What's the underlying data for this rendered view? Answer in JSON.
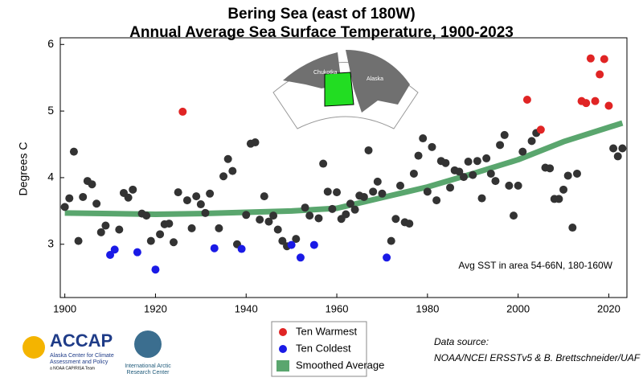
{
  "chart_data": {
    "type": "scatter",
    "title": "Bering Sea (east of 180W)",
    "subtitle": "Annual Average Sea Surface Temperature, 1900-2023",
    "y_label": "Degrees C",
    "annotation": "Avg SST in area 54-66N, 180-160W",
    "xlim": [
      1899,
      2024
    ],
    "xticks": [
      1900,
      1920,
      1940,
      1960,
      1980,
      2000,
      2020
    ],
    "ylim": [
      2.2,
      6.1
    ],
    "yticks": [
      3,
      4,
      5,
      6
    ],
    "series": [
      {
        "color": "#333333",
        "x": [
          1900,
          1901,
          1902,
          1903,
          1904,
          1905,
          1906,
          1907,
          1908,
          1909,
          1912,
          1913,
          1914,
          1915,
          1917,
          1918,
          1919,
          1921,
          1922,
          1923,
          1924,
          1925,
          1927,
          1928,
          1929,
          1930,
          1931,
          1932,
          1934,
          1935,
          1936,
          1937,
          1938,
          1940,
          1941,
          1942,
          1943,
          1944,
          1945,
          1946,
          1947,
          1948,
          1949,
          1951,
          1953,
          1954,
          1956,
          1957,
          1958,
          1959,
          1960,
          1961,
          1962,
          1963,
          1964,
          1965,
          1966,
          1967,
          1968,
          1969,
          1970,
          1972,
          1973,
          1974,
          1975,
          1976,
          1977,
          1978,
          1979,
          1980,
          1981,
          1982,
          1983,
          1984,
          1985,
          1986,
          1987,
          1988,
          1989,
          1990,
          1991,
          1992,
          1993,
          1994,
          1995,
          1996,
          1997,
          1998,
          1999,
          2000,
          2001,
          2003,
          2004,
          2006,
          2007,
          2008,
          2009,
          2010,
          2011,
          2012,
          2013,
          2021,
          2022,
          2023
        ],
        "values": [
          3.56,
          3.69,
          4.39,
          3.05,
          3.71,
          3.95,
          3.9,
          3.61,
          3.18,
          3.28,
          3.22,
          3.77,
          3.7,
          3.82,
          3.46,
          3.43,
          3.05,
          3.15,
          3.3,
          3.31,
          3.03,
          3.78,
          3.66,
          3.24,
          3.72,
          3.6,
          3.47,
          3.76,
          3.24,
          4.02,
          4.28,
          4.1,
          3.0,
          3.44,
          4.51,
          4.53,
          3.37,
          3.72,
          3.34,
          3.43,
          3.22,
          3.05,
          2.97,
          3.08,
          3.55,
          3.43,
          3.39,
          4.21,
          3.79,
          3.53,
          3.78,
          3.38,
          3.45,
          3.61,
          3.52,
          3.73,
          3.71,
          4.41,
          3.79,
          3.94,
          3.76,
          3.05,
          3.38,
          3.88,
          3.33,
          3.31,
          4.06,
          4.33,
          4.59,
          3.79,
          4.46,
          3.66,
          4.25,
          4.22,
          3.85,
          4.11,
          4.09,
          4.01,
          4.24,
          4.04,
          4.25,
          3.69,
          4.29,
          4.06,
          3.95,
          4.49,
          4.64,
          3.88,
          3.43,
          3.88,
          4.39,
          4.55,
          4.67,
          4.15,
          4.14,
          3.68,
          3.68,
          3.82,
          4.03,
          3.25,
          4.06,
          4.44,
          4.32,
          4.44
        ]
      },
      {
        "name": "Ten Warmest",
        "color": "#e02424",
        "x": [
          1926,
          2002,
          2005,
          2014,
          2015,
          2016,
          2017,
          2018,
          2019,
          2020
        ],
        "values": [
          4.99,
          5.17,
          4.72,
          5.15,
          5.12,
          5.79,
          5.15,
          5.55,
          5.78,
          5.08
        ]
      },
      {
        "name": "Ten Coldest",
        "color": "#1a1ae6",
        "x": [
          1910,
          1911,
          1916,
          1920,
          1933,
          1939,
          1950,
          1952,
          1955,
          1971
        ],
        "values": [
          2.84,
          2.92,
          2.88,
          2.62,
          2.94,
          2.93,
          2.99,
          2.8,
          2.99,
          2.8
        ]
      },
      {
        "name": "Smoothed Average",
        "color": "#5aa66e",
        "type": "line",
        "x": [
          1900,
          1910,
          1920,
          1930,
          1940,
          1950,
          1960,
          1970,
          1980,
          1990,
          2000,
          2010,
          2023
        ],
        "values": [
          3.47,
          3.46,
          3.45,
          3.46,
          3.48,
          3.5,
          3.54,
          3.7,
          3.86,
          4.06,
          4.27,
          4.54,
          4.82
        ]
      }
    ],
    "source": [
      "Data source:",
      "NOAA/NCEI ERSSTv5 & B. Brettschneider/UAF"
    ],
    "map_labels": [
      "Chukotka",
      "Alaska"
    ],
    "logo": {
      "name": "ACCAP",
      "line1": "Alaska Center for Climate",
      "line2": "Assessment and Policy",
      "team": "a NOAA CAP/RISA Team",
      "iarc1": "International Arctic",
      "iarc2": "Research Center"
    }
  }
}
